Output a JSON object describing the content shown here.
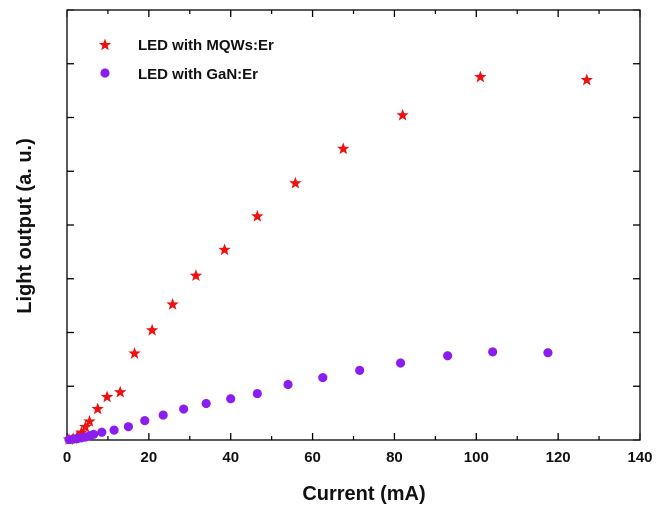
{
  "chart_data": {
    "type": "scatter",
    "xlabel": "Current (mA)",
    "ylabel": "Light output (a. u.)",
    "xlim": [
      0,
      140
    ],
    "ylim": [
      0,
      100
    ],
    "xticks": [
      0,
      20,
      40,
      60,
      80,
      100,
      120,
      140
    ],
    "x_tick_labels": [
      "0",
      "20",
      "40",
      "60",
      "80",
      "100",
      "120",
      "140"
    ],
    "y_tick_labels_shown": false,
    "grid": false,
    "legend_position": "top-left",
    "series": [
      {
        "name": "LED with MQWs:Er",
        "marker": "star",
        "color": "#ee1111",
        "x": [
          0.5,
          1.5,
          2.5,
          3.5,
          4.5,
          5.5,
          7.5,
          9.8,
          13,
          16.5,
          20.8,
          25.8,
          31.5,
          38.5,
          46.5,
          55.8,
          67.5,
          82,
          101,
          127
        ],
        "y": [
          0.1,
          0.3,
          0.8,
          1.7,
          3.0,
          4.3,
          7.2,
          10.0,
          11.1,
          20.1,
          25.5,
          31.5,
          38.2,
          44.2,
          52.0,
          59.7,
          67.7,
          75.5,
          84.4,
          83.7
        ]
      },
      {
        "name": "LED with GaN:Er",
        "marker": "circle",
        "color": "#8a1ef0",
        "x": [
          0.5,
          1.5,
          2.5,
          3.5,
          4.5,
          5.5,
          6.5,
          8.5,
          11.5,
          15,
          19,
          23.5,
          28.5,
          34,
          40,
          46.5,
          54,
          62.5,
          71.5,
          81.5,
          93,
          104,
          117.5
        ],
        "y": [
          0.1,
          0.2,
          0.3,
          0.5,
          0.7,
          1.0,
          1.3,
          1.8,
          2.3,
          3.1,
          4.5,
          5.8,
          7.2,
          8.5,
          9.6,
          10.8,
          12.9,
          14.5,
          16.2,
          17.9,
          19.6,
          20.5,
          20.3
        ]
      }
    ]
  }
}
